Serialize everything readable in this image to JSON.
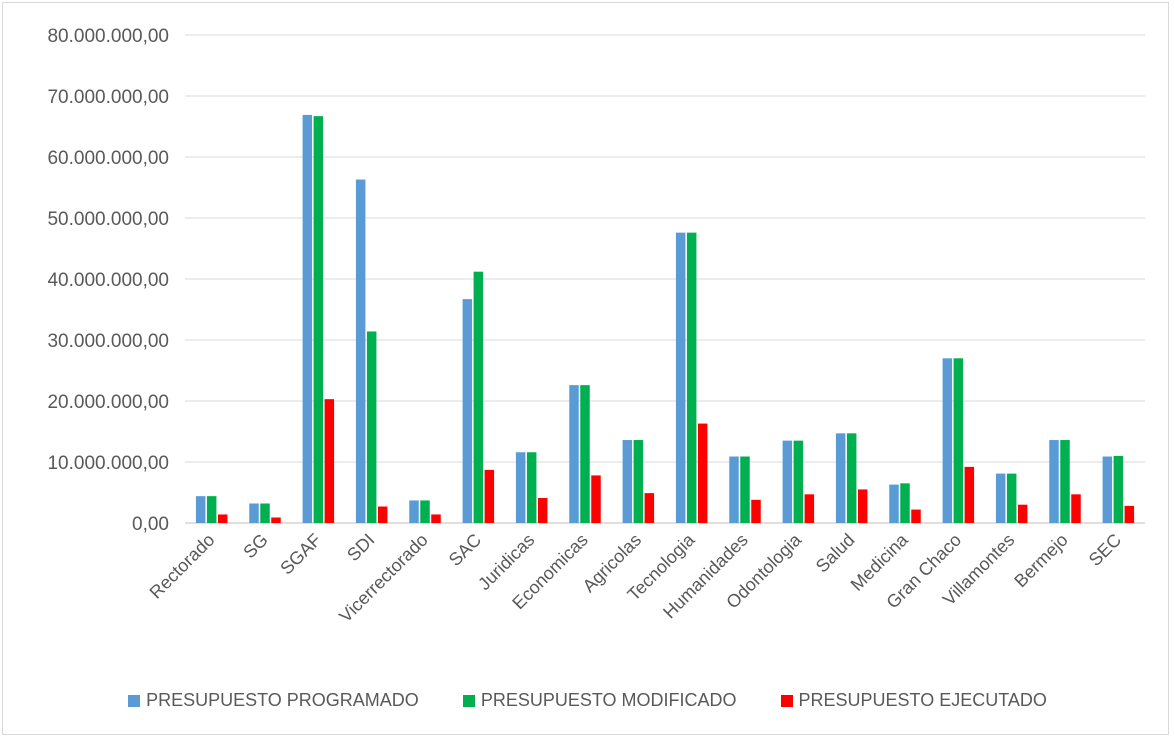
{
  "chart_data": {
    "type": "bar",
    "title": "",
    "xlabel": "",
    "ylabel": "",
    "ylim": [
      0,
      80000000
    ],
    "y_ticks": [
      "0,00",
      "10.000.000,00",
      "20.000.000,00",
      "30.000.000,00",
      "40.000.000,00",
      "50.000.000,00",
      "60.000.000,00",
      "70.000.000,00",
      "80.000.000,00"
    ],
    "grid": true,
    "legend_position": "bottom",
    "categories": [
      "Rectorado",
      "SG",
      "SGAF",
      "SDI",
      "Vicerrectorado",
      "SAC",
      "Juridicas",
      "Economicas",
      "Agricolas",
      "Tecnologia",
      "Humanidades",
      "Odontologia",
      "Salud",
      "Medicina",
      "Gran Chaco",
      "Villamontes",
      "Bermejo",
      "SEC"
    ],
    "series": [
      {
        "name": "PRESUPUESTO PROGRAMADO",
        "color": "#5b9bd5",
        "values": [
          4400000,
          3200000,
          66900000,
          56300000,
          3700000,
          36700000,
          11600000,
          22600000,
          13600000,
          47600000,
          10900000,
          13500000,
          14700000,
          6300000,
          27000000,
          8100000,
          13600000,
          10900000
        ]
      },
      {
        "name": "PRESUPUESTO MODIFICADO",
        "color": "#00b050",
        "values": [
          4400000,
          3200000,
          66700000,
          31400000,
          3700000,
          41200000,
          11600000,
          22600000,
          13600000,
          47600000,
          10900000,
          13500000,
          14700000,
          6500000,
          27000000,
          8100000,
          13600000,
          11000000
        ]
      },
      {
        "name": "PRESUPUESTO EJECUTADO",
        "color": "#ff0000",
        "values": [
          1400000,
          900000,
          20300000,
          2700000,
          1400000,
          8700000,
          4100000,
          7800000,
          4900000,
          16300000,
          3800000,
          4700000,
          5500000,
          2200000,
          9200000,
          3000000,
          4700000,
          2800000
        ]
      }
    ]
  }
}
